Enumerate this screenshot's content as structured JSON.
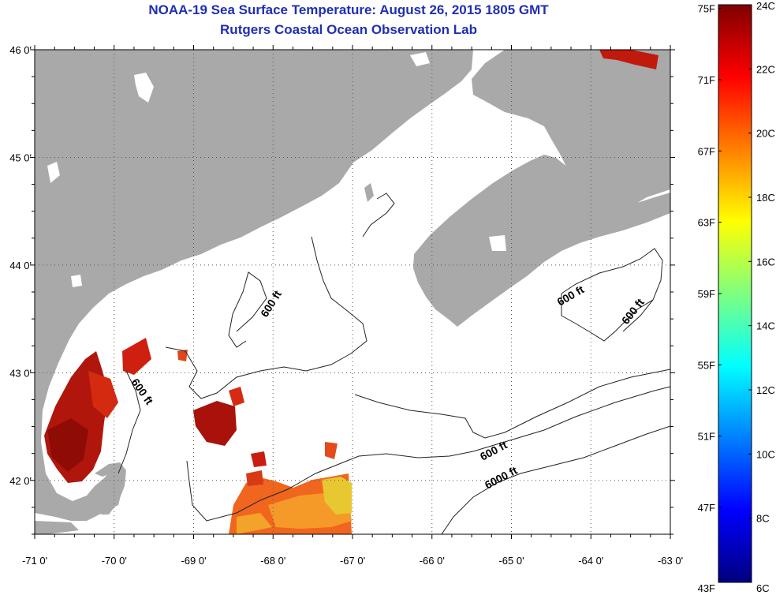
{
  "title": "NOAA-19 Sea Surface Temperature:  August 26, 2015 1805 GMT",
  "subtitle": "Rutgers Coastal Ocean Observation Lab",
  "map": {
    "lat_range": [
      41.5,
      46.0
    ],
    "lon_range": [
      -71.0,
      -63.0
    ],
    "lat_ticks": [
      "46 0'",
      "45 0'",
      "44 0'",
      "43 0'",
      "42 0'"
    ],
    "lon_ticks": [
      "-71 0'",
      "-70 0'",
      "-69 0'",
      "-68 0'",
      "-67 0'",
      "-66 0'",
      "-65 0'",
      "-64 0'",
      "-63 0'"
    ],
    "grid": "dotted",
    "colors": {
      "land": "#a9a9a9",
      "ocean_no_data": "#ffffff",
      "contour": "#222222"
    },
    "contour_labels": [
      "600 ft",
      "600 ft",
      "600 ft",
      "600 ft",
      "600 ft",
      "6000 ft"
    ]
  },
  "colorbar": {
    "units_left": "Fahrenheit",
    "units_right": "Celsius",
    "fahrenheit_ticks": [
      "75F",
      "71F",
      "67F",
      "63F",
      "59F",
      "55F",
      "51F",
      "47F",
      "43F"
    ],
    "celsius_ticks": [
      "24C",
      "22C",
      "20C",
      "18C",
      "16C",
      "14C",
      "12C",
      "10C",
      "8C",
      "6C"
    ],
    "range_c": [
      6,
      24
    ],
    "colormap": "jet"
  }
}
